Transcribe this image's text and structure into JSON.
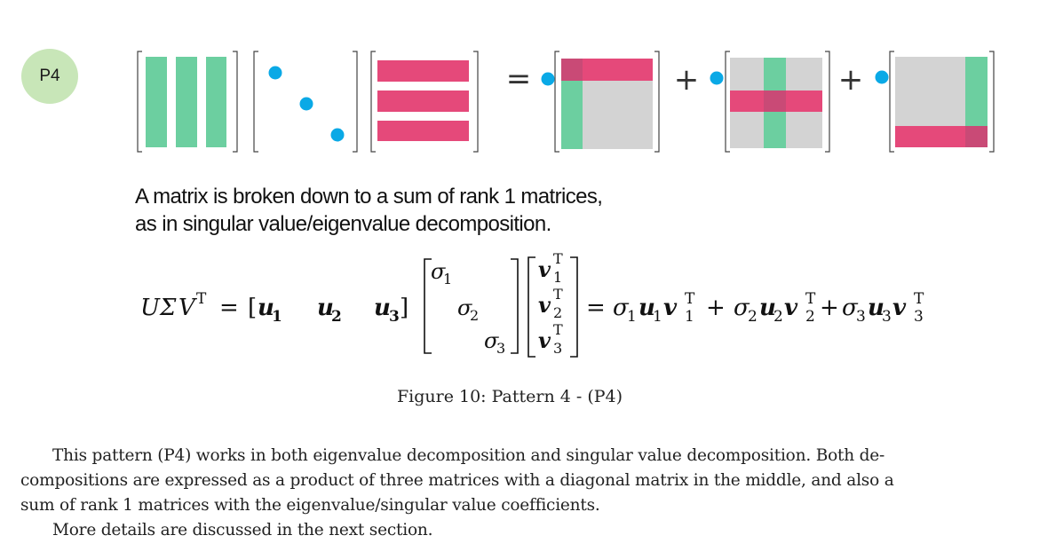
{
  "badge": {
    "label": "P4"
  },
  "diagram": {
    "equals_sign": "=",
    "plus_sign": "+"
  },
  "statement": {
    "line1": "A matrix is broken down to a sum of rank 1 matrices,",
    "line2": "as in singular value/eigenvalue decomposition."
  },
  "equation": {
    "lhs_U": "U",
    "lhs_Sigma": "Σ",
    "lhs_V": "V",
    "transpose": "T",
    "equals": "=",
    "plus": "+",
    "u_vectors": [
      "u",
      "u",
      "u"
    ],
    "subscripts": [
      "1",
      "2",
      "3"
    ],
    "sigma": "σ",
    "v_vector": "v"
  },
  "figure": {
    "caption": "Figure 10: Pattern 4 - (P4)"
  },
  "body": {
    "line1": "This pattern (P4) works in both eigenvalue decomposition and singular value decomposition. Both de-",
    "line2": "compositions are expressed as a product of three matrices with a diagonal matrix in the middle, and also a",
    "line3": "sum of rank 1 matrices with the eigenvalue/singular value coefficients.",
    "line4": "More details are discussed in the next section."
  },
  "colors": {
    "green": "#6ccfa0",
    "pink": "#e5497a",
    "gray": "#d3d3d3",
    "blue_dot": "#0aa9e6",
    "badge": "#c8e6b8"
  }
}
